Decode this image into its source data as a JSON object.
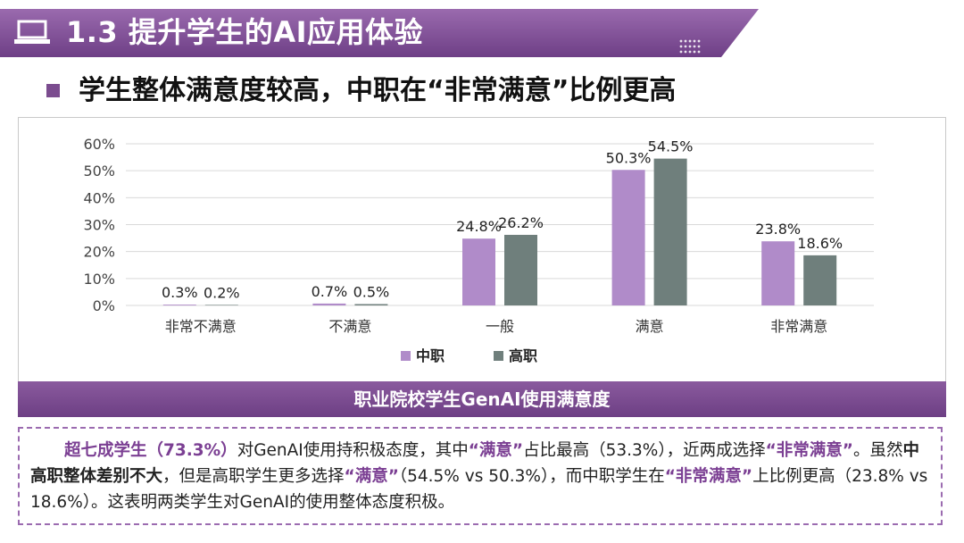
{
  "header": {
    "title": "1.3 提升学生的AI应用体验"
  },
  "subtitle": "学生整体满意度较高，中职在“非常满意”比例更高",
  "caption": "职业院校学生GenAI使用满意度",
  "summary": {
    "parts": [
      {
        "text": "超七成学生（73.3%）",
        "style": "hl"
      },
      {
        "text": "对GenAI使用持积极态度，其中",
        "style": ""
      },
      {
        "text": "“满意”",
        "style": "hl"
      },
      {
        "text": "占比最高（53.3%），近两成选择",
        "style": ""
      },
      {
        "text": "“非常满意”",
        "style": "hl"
      },
      {
        "text": "。虽然",
        "style": ""
      },
      {
        "text": "中高职整体差别不大",
        "style": "bd"
      },
      {
        "text": "，但是高职学生更多选择",
        "style": ""
      },
      {
        "text": "“满意”",
        "style": "hl"
      },
      {
        "text": "（54.5% vs 50.3%），而中职学生在",
        "style": ""
      },
      {
        "text": "“非常满意”",
        "style": "hl"
      },
      {
        "text": "上比例更高（23.8% vs 18.6%）。这表明两类学生对GenAI的使用整体态度积极。",
        "style": ""
      }
    ]
  },
  "colors": {
    "brand": "#7b4c8f",
    "series1": "#b08bc9",
    "series2": "#6f7f7c",
    "grid": "#d9d9d9"
  },
  "chart_data": {
    "type": "bar",
    "title": "职业院校学生GenAI使用满意度",
    "categories": [
      "非常不满意",
      "不满意",
      "一般",
      "满意",
      "非常满意"
    ],
    "series": [
      {
        "name": "中职",
        "values": [
          0.3,
          0.7,
          24.8,
          50.3,
          23.8
        ]
      },
      {
        "name": "高职",
        "values": [
          0.2,
          0.5,
          26.2,
          54.5,
          18.6
        ]
      }
    ],
    "ylim": [
      0,
      60
    ],
    "yticks": [
      0,
      10,
      20,
      30,
      40,
      50,
      60
    ],
    "ytick_labels": [
      "0%",
      "10%",
      "20%",
      "30%",
      "40%",
      "50%",
      "60%"
    ],
    "xlabel": "",
    "ylabel": "",
    "grid": true,
    "legend_position": "bottom"
  }
}
